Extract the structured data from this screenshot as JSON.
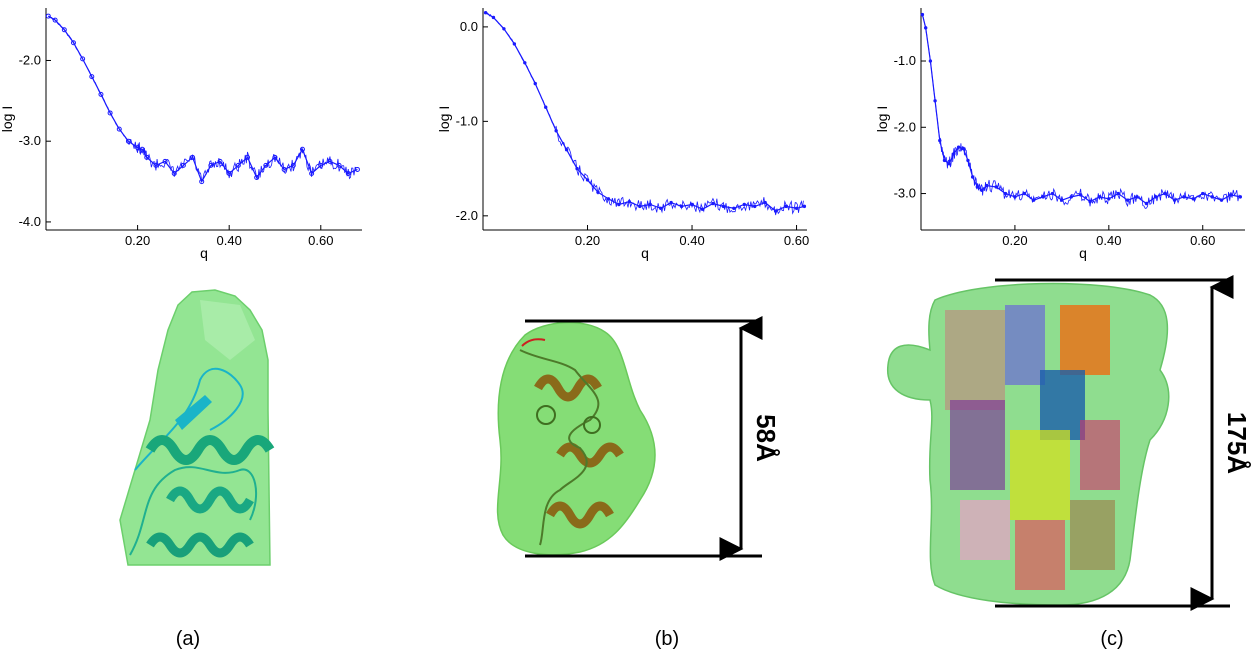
{
  "panels": [
    {
      "caption": "(a)",
      "dimension_label": ""
    },
    {
      "caption": "(b)",
      "dimension_label": "58Å"
    },
    {
      "caption": "(c)",
      "dimension_label": "175Å"
    }
  ],
  "colors": {
    "curve": "#1a1aff",
    "surface": "#8ee08e",
    "surface_edge": "#5cbf5c",
    "helix_a": "#19a77a",
    "helix_a_cyan": "#1ab4c8",
    "helix_b": "#8a6a1a",
    "arrow": "#000000"
  },
  "chart_data": [
    {
      "type": "scatter",
      "title": "",
      "xlabel": "q",
      "ylabel": "log I",
      "xlim": [
        0.0,
        0.69
      ],
      "ylim": [
        -4.1,
        -1.35
      ],
      "xticks": [
        0.2,
        0.4,
        0.6
      ],
      "xtick_labels": [
        "0.20",
        "0.40",
        "0.60"
      ],
      "yticks": [
        -2.0,
        -3.0,
        -4.0
      ],
      "ytick_labels": [
        "-2.0",
        "-3.0",
        "-4.0"
      ],
      "grid": false,
      "marker": "circle",
      "series": [
        {
          "x": [
            0.005,
            0.02,
            0.04,
            0.06,
            0.08,
            0.1,
            0.12,
            0.14,
            0.16,
            0.18,
            0.2,
            0.21,
            0.22,
            0.24,
            0.26,
            0.28,
            0.3,
            0.32,
            0.34,
            0.36,
            0.38,
            0.4,
            0.42,
            0.44,
            0.46,
            0.48,
            0.5,
            0.52,
            0.54,
            0.56,
            0.58,
            0.6,
            0.62,
            0.64,
            0.66,
            0.68
          ],
          "y": [
            -1.45,
            -1.5,
            -1.62,
            -1.78,
            -1.98,
            -2.2,
            -2.42,
            -2.65,
            -2.85,
            -3.0,
            -3.08,
            -3.1,
            -3.2,
            -3.3,
            -3.25,
            -3.4,
            -3.3,
            -3.2,
            -3.5,
            -3.3,
            -3.25,
            -3.4,
            -3.3,
            -3.2,
            -3.45,
            -3.3,
            -3.2,
            -3.35,
            -3.3,
            -3.1,
            -3.4,
            -3.3,
            -3.25,
            -3.3,
            -3.4,
            -3.35
          ]
        }
      ]
    },
    {
      "type": "scatter",
      "title": "",
      "xlabel": "q",
      "ylabel": "log I",
      "xlim": [
        0.0,
        0.62
      ],
      "ylim": [
        -2.15,
        0.2
      ],
      "xticks": [
        0.2,
        0.4,
        0.6
      ],
      "xtick_labels": [
        "0.20",
        "0.40",
        "0.60"
      ],
      "yticks": [
        0.0,
        -1.0,
        -2.0
      ],
      "ytick_labels": [
        "0.0",
        "-1.0",
        "-2.0"
      ],
      "grid": false,
      "marker": "dot",
      "series": [
        {
          "x": [
            0.005,
            0.02,
            0.04,
            0.06,
            0.08,
            0.1,
            0.12,
            0.14,
            0.16,
            0.18,
            0.2,
            0.22,
            0.24,
            0.26,
            0.28,
            0.3,
            0.32,
            0.34,
            0.36,
            0.38,
            0.4,
            0.42,
            0.44,
            0.46,
            0.48,
            0.5,
            0.52,
            0.54,
            0.56,
            0.58,
            0.6,
            0.615
          ],
          "y": [
            0.15,
            0.1,
            -0.02,
            -0.18,
            -0.38,
            -0.6,
            -0.85,
            -1.1,
            -1.3,
            -1.5,
            -1.62,
            -1.75,
            -1.82,
            -1.88,
            -1.85,
            -1.9,
            -1.88,
            -1.92,
            -1.86,
            -1.9,
            -1.88,
            -1.93,
            -1.87,
            -1.9,
            -1.92,
            -1.88,
            -1.9,
            -1.86,
            -1.95,
            -1.9,
            -1.92,
            -1.9
          ]
        }
      ]
    },
    {
      "type": "scatter",
      "title": "",
      "xlabel": "q",
      "ylabel": "log I",
      "xlim": [
        0.0,
        0.69
      ],
      "ylim": [
        -3.55,
        -0.2
      ],
      "xticks": [
        0.2,
        0.4,
        0.6
      ],
      "xtick_labels": [
        "0.20",
        "0.40",
        "0.60"
      ],
      "yticks": [
        -1.0,
        -2.0,
        -3.0
      ],
      "ytick_labels": [
        "-1.0",
        "-2.0",
        "-3.0"
      ],
      "grid": false,
      "marker": "dot",
      "series": [
        {
          "x": [
            0.003,
            0.01,
            0.02,
            0.03,
            0.04,
            0.05,
            0.06,
            0.07,
            0.08,
            0.09,
            0.1,
            0.11,
            0.12,
            0.13,
            0.14,
            0.16,
            0.18,
            0.2,
            0.22,
            0.24,
            0.26,
            0.28,
            0.3,
            0.32,
            0.34,
            0.36,
            0.38,
            0.4,
            0.42,
            0.44,
            0.46,
            0.48,
            0.5,
            0.52,
            0.54,
            0.56,
            0.58,
            0.6,
            0.62,
            0.64,
            0.66,
            0.68
          ],
          "y": [
            -0.3,
            -0.5,
            -1.0,
            -1.6,
            -2.2,
            -2.5,
            -2.55,
            -2.4,
            -2.3,
            -2.32,
            -2.5,
            -2.75,
            -2.9,
            -2.95,
            -2.88,
            -2.9,
            -3.0,
            -3.05,
            -3.0,
            -3.1,
            -3.05,
            -3.0,
            -3.1,
            -3.05,
            -3.02,
            -3.12,
            -3.05,
            -3.08,
            -3.0,
            -3.1,
            -3.05,
            -3.15,
            -3.05,
            -3.0,
            -3.1,
            -3.05,
            -3.08,
            -3.0,
            -3.05,
            -3.1,
            -3.02,
            -3.05
          ]
        }
      ]
    }
  ]
}
